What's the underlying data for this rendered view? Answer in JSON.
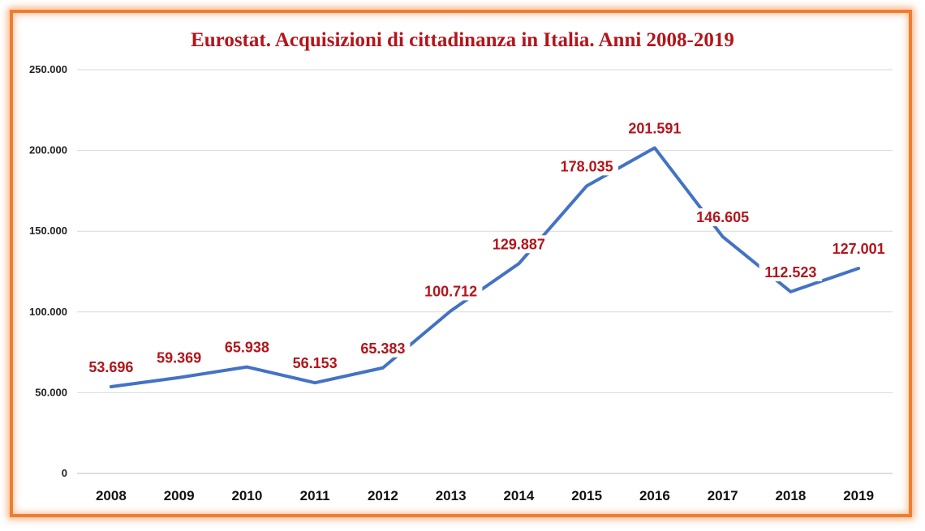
{
  "chart_data": {
    "type": "line",
    "title": "Eurostat. Acquisizioni di cittadinanza in Italia. Anni 2008-2019",
    "categories": [
      "2008",
      "2009",
      "2010",
      "2011",
      "2012",
      "2013",
      "2014",
      "2015",
      "2016",
      "2017",
      "2018",
      "2019"
    ],
    "series": [
      {
        "values": [
          53696,
          59369,
          65938,
          56153,
          65383,
          100712,
          129887,
          178035,
          201591,
          146605,
          112523,
          127001
        ],
        "data_labels": [
          "53.696",
          "59.369",
          "65.938",
          "56.153",
          "65.383",
          "100.712",
          "129.887",
          "178.035",
          "201.591",
          "146.605",
          "112.523",
          "127.001"
        ]
      }
    ],
    "ylim": [
      0,
      250000
    ],
    "yticks": [
      0,
      50000,
      100000,
      150000,
      200000,
      250000
    ],
    "ytick_labels": [
      "0",
      "50.000",
      "100.000",
      "150.000",
      "200.000",
      "250.000"
    ],
    "grid": true,
    "line_color": "#4472c4",
    "label_color": "#b3151b",
    "frame_color": "#ef7d2f"
  }
}
